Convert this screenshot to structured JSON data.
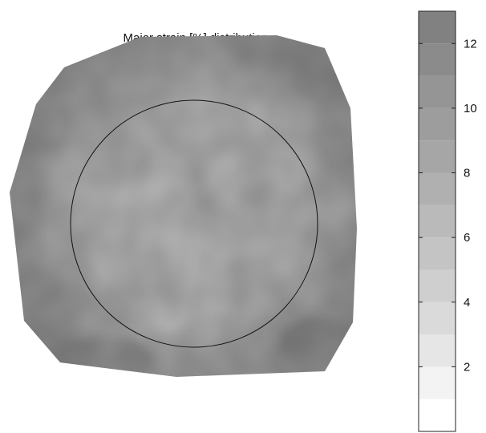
{
  "chart_data": {
    "type": "heatmap",
    "title": "Major strain [%] distribution",
    "colorbar": {
      "ticks": [
        2,
        4,
        6,
        8,
        10,
        12
      ],
      "range": [
        0,
        13
      ],
      "levels": [
        {
          "from": 0,
          "to": 1,
          "color": "#ffffff"
        },
        {
          "from": 1,
          "to": 2,
          "color": "#f3f3f3"
        },
        {
          "from": 2,
          "to": 3,
          "color": "#e6e6e6"
        },
        {
          "from": 3,
          "to": 4,
          "color": "#dadada"
        },
        {
          "from": 4,
          "to": 5,
          "color": "#cfcfcf"
        },
        {
          "from": 5,
          "to": 6,
          "color": "#c4c4c4"
        },
        {
          "from": 6,
          "to": 7,
          "color": "#bababa"
        },
        {
          "from": 7,
          "to": 8,
          "color": "#b0b0b0"
        },
        {
          "from": 8,
          "to": 9,
          "color": "#a6a6a6"
        },
        {
          "from": 9,
          "to": 10,
          "color": "#9d9d9d"
        },
        {
          "from": 10,
          "to": 11,
          "color": "#959595"
        },
        {
          "from": 11,
          "to": 12,
          "color": "#8b8b8b"
        },
        {
          "from": 12,
          "to": 13,
          "color": "#818181"
        }
      ]
    },
    "specimen": {
      "center_strain_level": 7.5,
      "edge_strain_level": 11
    }
  }
}
